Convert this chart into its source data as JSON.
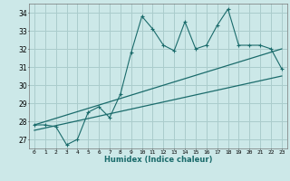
{
  "title": "",
  "xlabel": "Humidex (Indice chaleur)",
  "bg_color": "#cce8e8",
  "grid_color": "#aacccc",
  "line_color": "#1a6b6b",
  "xlim": [
    -0.5,
    23.5
  ],
  "ylim": [
    26.5,
    34.5
  ],
  "xticks": [
    0,
    1,
    2,
    3,
    4,
    5,
    6,
    7,
    8,
    9,
    10,
    11,
    12,
    13,
    14,
    15,
    16,
    17,
    18,
    19,
    20,
    21,
    22,
    23
  ],
  "yticks": [
    27,
    28,
    29,
    30,
    31,
    32,
    33,
    34
  ],
  "main_x": [
    0,
    1,
    2,
    3,
    4,
    5,
    6,
    7,
    8,
    9,
    10,
    11,
    12,
    13,
    14,
    15,
    16,
    17,
    18,
    19,
    20,
    21,
    22,
    23
  ],
  "main_y": [
    27.8,
    27.8,
    27.7,
    26.7,
    27.0,
    28.5,
    28.8,
    28.2,
    29.5,
    31.8,
    33.8,
    33.1,
    32.2,
    31.9,
    33.5,
    32.0,
    32.2,
    33.3,
    34.2,
    32.2,
    32.2,
    32.2,
    32.0,
    30.9
  ],
  "line2_x": [
    0,
    23
  ],
  "line2_y": [
    27.8,
    32.0
  ],
  "line3_x": [
    0,
    23
  ],
  "line3_y": [
    27.5,
    30.5
  ]
}
